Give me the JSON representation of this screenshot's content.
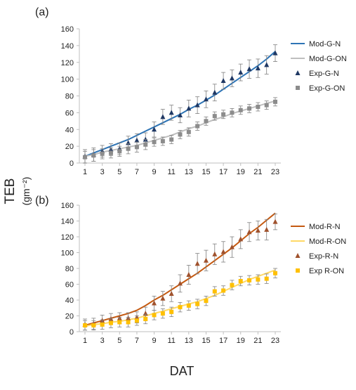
{
  "figure": {
    "shared_ylabel": "TEB",
    "shared_ylabel_unit": "(gm⁻²)",
    "shared_xlabel": "DAT"
  },
  "chart_data": [
    {
      "panel_label": "(a)",
      "type": "line",
      "x": [
        1,
        2,
        3,
        4,
        5,
        6,
        7,
        8,
        9,
        10,
        11,
        12,
        13,
        14,
        15,
        16,
        17,
        18,
        19,
        20,
        21,
        22,
        23
      ],
      "xticks": [
        1,
        3,
        5,
        7,
        9,
        11,
        13,
        15,
        17,
        19,
        21,
        23
      ],
      "yticks": [
        0,
        20,
        40,
        60,
        80,
        100,
        120,
        140,
        160
      ],
      "ylim": [
        0,
        160
      ],
      "xlim": [
        1,
        23
      ],
      "series": [
        {
          "name": "Mod-G-N",
          "kind": "line",
          "color": "#2e74b5",
          "values": [
            8,
            12,
            16,
            20,
            24,
            28,
            33,
            38,
            43,
            48,
            53,
            58,
            64,
            69,
            75,
            81,
            88,
            95,
            102,
            109,
            116,
            124,
            133
          ]
        },
        {
          "name": "Mod-G-ON",
          "kind": "line",
          "color": "#bfbfbf",
          "values": [
            8,
            10,
            13,
            15,
            17,
            19,
            21,
            24,
            27,
            30,
            33,
            37,
            41,
            44,
            48,
            52,
            55,
            59,
            62,
            65,
            68,
            71,
            74
          ]
        },
        {
          "name": "Exp-G-N",
          "kind": "markers",
          "marker": "triangle",
          "color": "#1f3864",
          "values": [
            8,
            10,
            14,
            16,
            17,
            24,
            27,
            28,
            40,
            55,
            60,
            57,
            65,
            69,
            76,
            84,
            98,
            101,
            108,
            112,
            113,
            117,
            131
          ],
          "errors": [
            8,
            8,
            7,
            7,
            7,
            8,
            8,
            8,
            9,
            9,
            9,
            9,
            10,
            10,
            10,
            10,
            10,
            10,
            10,
            11,
            11,
            11,
            10
          ]
        },
        {
          "name": "Exp-G-ON",
          "kind": "markers",
          "marker": "square",
          "color": "#8c8c8c",
          "values": [
            7,
            9,
            11,
            12,
            14,
            17,
            19,
            22,
            25,
            26,
            28,
            34,
            37,
            44,
            50,
            56,
            58,
            60,
            63,
            65,
            67,
            69,
            73
          ],
          "errors": [
            7,
            7,
            6,
            6,
            6,
            6,
            6,
            6,
            5,
            5,
            5,
            5,
            5,
            5,
            5,
            5,
            5,
            5,
            5,
            5,
            5,
            5,
            5
          ]
        }
      ]
    },
    {
      "panel_label": "(b)",
      "type": "line",
      "x": [
        1,
        2,
        3,
        4,
        5,
        6,
        7,
        8,
        9,
        10,
        11,
        12,
        13,
        14,
        15,
        16,
        17,
        18,
        19,
        20,
        21,
        22,
        23
      ],
      "xticks": [
        1,
        3,
        5,
        7,
        9,
        11,
        13,
        15,
        17,
        19,
        21,
        23
      ],
      "yticks": [
        0,
        20,
        40,
        60,
        80,
        100,
        120,
        140,
        160
      ],
      "ylim": [
        0,
        160
      ],
      "xlim": [
        1,
        23
      ],
      "series": [
        {
          "name": "Mod-R-N",
          "kind": "line",
          "color": "#c55a11",
          "values": [
            8,
            11,
            14,
            17,
            20,
            23,
            27,
            33,
            40,
            46,
            53,
            60,
            67,
            74,
            82,
            90,
            98,
            106,
            115,
            124,
            132,
            141,
            150
          ]
        },
        {
          "name": "Mod-R-ON",
          "kind": "line",
          "color": "#ffd966",
          "values": [
            7,
            9,
            10,
            12,
            13,
            15,
            17,
            20,
            23,
            26,
            29,
            32,
            35,
            38,
            42,
            46,
            51,
            56,
            61,
            66,
            70,
            74,
            78
          ]
        },
        {
          "name": "Exp-R-N",
          "kind": "markers",
          "marker": "triangle",
          "color": "#a0522d",
          "values": [
            9,
            10,
            14,
            16,
            17,
            17,
            18,
            23,
            36,
            42,
            48,
            61,
            72,
            86,
            90,
            98,
            101,
            107,
            117,
            126,
            128,
            129,
            139
          ],
          "errors": [
            7,
            7,
            7,
            7,
            7,
            7,
            7,
            8,
            9,
            9,
            10,
            11,
            12,
            13,
            13,
            13,
            13,
            13,
            12,
            12,
            12,
            13,
            10
          ]
        },
        {
          "name": "Exp R-ON",
          "kind": "markers",
          "marker": "square",
          "color": "#ffc000",
          "values": [
            8,
            8,
            9,
            11,
            12,
            12,
            14,
            16,
            21,
            23,
            25,
            31,
            33,
            35,
            39,
            51,
            52,
            59,
            64,
            65,
            66,
            67,
            74
          ],
          "errors": [
            6,
            6,
            6,
            6,
            6,
            6,
            6,
            6,
            6,
            6,
            6,
            6,
            6,
            6,
            6,
            6,
            6,
            6,
            6,
            6,
            6,
            6,
            6
          ]
        }
      ]
    }
  ]
}
